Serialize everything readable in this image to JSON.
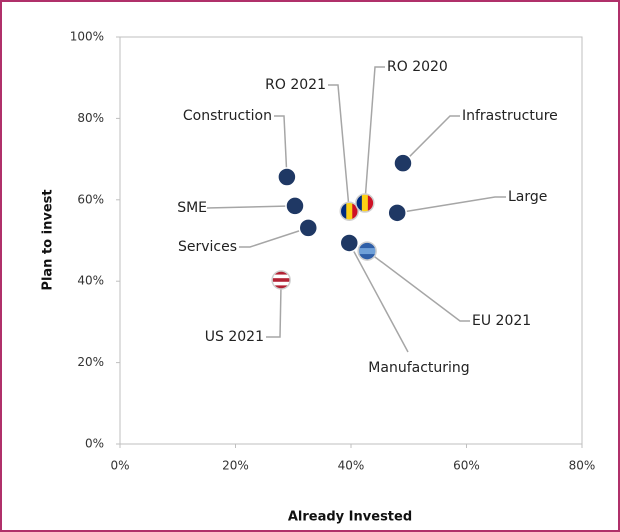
{
  "chart_data": {
    "type": "scatter",
    "x_label": "Already Invested",
    "y_label": "Plan to invest",
    "xlim": [
      0,
      80
    ],
    "ylim": [
      0,
      100
    ],
    "xticks": [
      {
        "value": 0,
        "label": "0%"
      },
      {
        "value": 20,
        "label": "20%"
      },
      {
        "value": 40,
        "label": "40%"
      },
      {
        "value": 60,
        "label": "60%"
      },
      {
        "value": 80,
        "label": "80%"
      }
    ],
    "yticks": [
      {
        "value": 0,
        "label": "0%"
      },
      {
        "value": 20,
        "label": "20%"
      },
      {
        "value": 40,
        "label": "40%"
      },
      {
        "value": 60,
        "label": "60%"
      },
      {
        "value": 80,
        "label": "80%"
      },
      {
        "value": 100,
        "label": "100%"
      }
    ],
    "points": [
      {
        "label": "Construction",
        "x": 28.9,
        "y": 65.6,
        "colors": [
          "#1f3864"
        ]
      },
      {
        "label": "SME",
        "x": 30.3,
        "y": 58.5,
        "colors": [
          "#1f3864"
        ]
      },
      {
        "label": "Services",
        "x": 32.6,
        "y": 53.1,
        "colors": [
          "#1f3864"
        ]
      },
      {
        "label": "US 2021",
        "x": 27.9,
        "y": 40.3,
        "colors": [
          "#b22234",
          "#ffffff",
          "#b22234",
          "#ffffff",
          "#b22234"
        ],
        "stripes": "horizontal"
      },
      {
        "label": "RO 2021",
        "x": 39.7,
        "y": 57.2,
        "colors": [
          "#002b7f",
          "#fcd116",
          "#ce1126"
        ],
        "stripes": "vertical"
      },
      {
        "label": "RO 2020",
        "x": 42.4,
        "y": 59.2,
        "colors": [
          "#002b7f",
          "#fcd116",
          "#ce1126"
        ],
        "stripes": "vertical"
      },
      {
        "label": "Manufacturing",
        "x": 39.7,
        "y": 49.4,
        "colors": [
          "#1f3864"
        ]
      },
      {
        "label": "EU 2021",
        "x": 42.8,
        "y": 47.4,
        "colors": [
          "#2f5fa8",
          "#6fa0d8",
          "#2f5fa8"
        ],
        "stripes": "horizontal"
      },
      {
        "label": "Infrastructure",
        "x": 49.0,
        "y": 69.0,
        "colors": [
          "#1f3864"
        ]
      },
      {
        "label": "Large",
        "x": 48.0,
        "y": 56.8,
        "colors": [
          "#1f3864"
        ]
      }
    ]
  }
}
